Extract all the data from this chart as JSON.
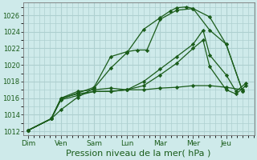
{
  "background_color": "#ceeaea",
  "grid_color": "#aed0d0",
  "line_color": "#1a5c1a",
  "marker_color": "#1a5c1a",
  "xlabel": "Pression niveau de la mer( hPa )",
  "xlabel_fontsize": 8,
  "ylim": [
    1011.5,
    1027.5
  ],
  "yticks": [
    1012,
    1014,
    1016,
    1018,
    1020,
    1022,
    1024,
    1026
  ],
  "xtick_labels": [
    "Dim",
    "Ven",
    "Sam",
    "Lun",
    "Mar",
    "Mer",
    "Jeu"
  ],
  "xtick_positions": [
    0,
    1,
    2,
    3,
    4,
    5,
    6
  ],
  "xlim": [
    -0.15,
    6.85
  ],
  "series": [
    {
      "x": [
        0.0,
        0.7,
        1.0,
        1.5,
        2.0,
        2.5,
        3.0,
        3.5,
        4.0,
        4.3,
        4.5,
        4.8,
        5.0,
        5.5,
        6.0,
        6.5
      ],
      "y": [
        1012.1,
        1013.5,
        1014.6,
        1016.1,
        1017.2,
        1019.6,
        1021.5,
        1024.3,
        1025.7,
        1026.5,
        1026.9,
        1027.0,
        1026.8,
        1025.8,
        1022.5,
        1016.8
      ]
    },
    {
      "x": [
        0.0,
        0.7,
        1.0,
        1.5,
        2.0,
        2.5,
        3.0,
        3.3,
        3.6,
        4.0,
        4.5,
        5.0,
        5.5,
        6.0,
        6.5
      ],
      "y": [
        1012.1,
        1013.5,
        1015.9,
        1016.6,
        1017.3,
        1021.0,
        1021.6,
        1021.8,
        1021.8,
        1025.5,
        1026.6,
        1026.8,
        1024.2,
        1022.5,
        1016.8
      ]
    },
    {
      "x": [
        0.0,
        0.7,
        1.0,
        1.5,
        2.0,
        2.5,
        3.0,
        3.5,
        4.0,
        4.5,
        5.0,
        5.5,
        6.0,
        6.5
      ],
      "y": [
        1012.1,
        1013.5,
        1016.0,
        1016.8,
        1017.0,
        1017.2,
        1017.0,
        1017.0,
        1017.2,
        1017.3,
        1017.5,
        1017.5,
        1017.3,
        1017.0
      ]
    },
    {
      "x": [
        0.0,
        0.7,
        1.0,
        1.5,
        2.0,
        2.5,
        3.0,
        3.5,
        4.0,
        4.5,
        5.0,
        5.3,
        5.5,
        6.0,
        6.3,
        6.6
      ],
      "y": [
        1012.1,
        1013.5,
        1016.0,
        1016.5,
        1016.8,
        1016.8,
        1017.0,
        1018.0,
        1019.5,
        1021.0,
        1022.5,
        1024.2,
        1021.2,
        1018.8,
        1016.8,
        1017.8
      ]
    },
    {
      "x": [
        0.0,
        0.7,
        1.0,
        1.5,
        2.0,
        2.5,
        3.0,
        3.5,
        4.0,
        4.5,
        5.0,
        5.3,
        5.5,
        6.0,
        6.3,
        6.6
      ],
      "y": [
        1012.1,
        1013.5,
        1015.8,
        1016.3,
        1016.8,
        1016.8,
        1017.0,
        1017.5,
        1018.8,
        1020.2,
        1022.0,
        1023.0,
        1019.8,
        1017.0,
        1016.5,
        1017.5
      ]
    }
  ]
}
